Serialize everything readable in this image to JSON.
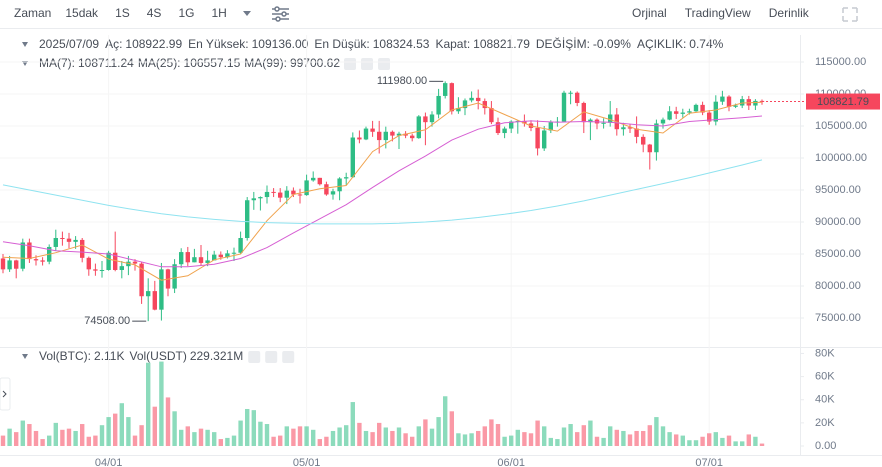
{
  "toolbar": {
    "label": "Zaman",
    "intervals": [
      "15dak",
      "1S",
      "4S",
      "1G",
      "1H"
    ],
    "active_interval": 3,
    "views": [
      "Orjinal",
      "TradingView",
      "Derinlik"
    ],
    "active_view": 0
  },
  "info": {
    "date": "2025/07/09",
    "items": [
      {
        "label": "Aç:",
        "value": "108922.99"
      },
      {
        "label": "En Yüksek:",
        "value": "109136.00"
      },
      {
        "label": "En Düşük:",
        "value": "108324.53"
      },
      {
        "label": "Kapat:",
        "value": "108821.79"
      },
      {
        "label": "DEĞİŞİM:",
        "value": "-0.09%"
      },
      {
        "label": "AÇIKLIK:",
        "value": "0.74%"
      }
    ]
  },
  "chart_data": [
    {
      "type": "candlestick",
      "up_color": "#2ebd85",
      "down_color": "#f6465d",
      "categories": [
        null,
        null,
        null,
        null,
        null,
        null,
        null,
        null,
        null,
        null,
        null,
        null,
        null,
        null,
        null,
        null,
        "04/01",
        null,
        null,
        null,
        null,
        null,
        null,
        null,
        null,
        null,
        null,
        null,
        null,
        null,
        null,
        null,
        null,
        null,
        null,
        null,
        null,
        null,
        null,
        null,
        null,
        null,
        null,
        null,
        null,
        null,
        "05/01",
        null,
        null,
        null,
        null,
        null,
        null,
        null,
        null,
        null,
        null,
        null,
        null,
        null,
        null,
        null,
        null,
        null,
        null,
        null,
        null,
        null,
        null,
        null,
        null,
        null,
        null,
        null,
        null,
        null,
        null,
        "06/01",
        null,
        null,
        null,
        null,
        null,
        null,
        null,
        null,
        null,
        null,
        null,
        null,
        null,
        null,
        null,
        null,
        null,
        null,
        null,
        null,
        null,
        null,
        null,
        null,
        null,
        null,
        null,
        null,
        null,
        "07/01",
        null,
        null,
        null,
        null,
        null,
        null,
        null,
        null
      ],
      "open": [
        84300,
        82600,
        84000,
        82700,
        86800,
        84200,
        84000,
        83800,
        86100,
        87500,
        87400,
        86900,
        87200,
        84400,
        82600,
        82400,
        82500,
        85200,
        82500,
        83100,
        83800,
        83500,
        78400,
        79200,
        76300,
        82600,
        79600,
        83400,
        85300,
        83700,
        84500,
        83600,
        84000,
        84900,
        84500,
        85100,
        85200,
        87500,
        93400,
        93700,
        93900,
        94700,
        94600,
        93800,
        94900,
        94300,
        94200,
        96500,
        96900,
        95900,
        94300,
        94800,
        96800,
        97000,
        103200,
        102900,
        104600,
        104100,
        102800,
        104100,
        103500,
        103800,
        103500,
        103100,
        106500,
        105600,
        106800,
        109700,
        111700,
        107300,
        107800,
        109000,
        109400,
        108900,
        107800,
        105600,
        103900,
        104600,
        105700,
        105800,
        105400,
        104700,
        101500,
        104300,
        105600,
        105700,
        110200,
        110200,
        108600,
        105600,
        106000,
        105400,
        105500,
        106800,
        104500,
        104800,
        104600,
        103300,
        102100,
        100900,
        105400,
        106000,
        107300,
        106900,
        107100,
        107300,
        108300,
        107100,
        105700,
        108800,
        109600,
        108000,
        108200,
        109200,
        108200,
        108922.99
      ],
      "high": [
        85000,
        84700,
        84100,
        87400,
        87400,
        84800,
        84500,
        86500,
        88800,
        88500,
        88300,
        87800,
        87500,
        84600,
        83500,
        83900,
        85500,
        88500,
        83900,
        84700,
        84200,
        83800,
        81200,
        80800,
        83600,
        82700,
        84200,
        85900,
        86100,
        85800,
        86400,
        85500,
        85500,
        85400,
        85600,
        86000,
        88500,
        93900,
        94700,
        94000,
        95700,
        95300,
        95300,
        95600,
        95400,
        95200,
        97400,
        97900,
        96900,
        96300,
        95200,
        97000,
        97700,
        104000,
        104300,
        104900,
        105800,
        105800,
        104900,
        104300,
        104100,
        104200,
        103800,
        106700,
        107100,
        107300,
        110800,
        111980,
        111800,
        109500,
        109300,
        110400,
        110700,
        109300,
        108900,
        106300,
        104900,
        105900,
        105900,
        106800,
        105900,
        105900,
        105000,
        105900,
        106400,
        110500,
        110500,
        110400,
        108800,
        106200,
        106200,
        106200,
        108900,
        107800,
        105500,
        105300,
        106500,
        103700,
        102200,
        106000,
        106300,
        108100,
        108000,
        107700,
        107700,
        108500,
        108800,
        107500,
        109800,
        110500,
        109800,
        108500,
        109700,
        109700,
        109200,
        109136
      ],
      "low": [
        82000,
        82200,
        81200,
        82300,
        83600,
        83200,
        83200,
        83400,
        85500,
        86300,
        85900,
        85800,
        83700,
        81600,
        81600,
        81300,
        82400,
        82300,
        81200,
        81700,
        82400,
        77200,
        74508,
        76200,
        74600,
        78400,
        78900,
        82800,
        83100,
        83700,
        83200,
        83100,
        84000,
        84100,
        84300,
        83900,
        85000,
        87100,
        91900,
        91800,
        92900,
        93900,
        93100,
        92800,
        93900,
        92900,
        94100,
        96300,
        95700,
        94100,
        93500,
        93400,
        95800,
        96900,
        102300,
        102800,
        103300,
        100700,
        101500,
        102600,
        101400,
        103100,
        102600,
        103000,
        102000,
        104900,
        106200,
        109300,
        106800,
        106900,
        106700,
        108700,
        107600,
        106800,
        105300,
        103600,
        103100,
        103900,
        103800,
        104900,
        104200,
        100400,
        101100,
        103900,
        104900,
        105600,
        108400,
        108100,
        103900,
        102800,
        104500,
        104600,
        104900,
        103500,
        103500,
        103900,
        102300,
        100900,
        98200,
        99600,
        104600,
        105900,
        106100,
        106300,
        106800,
        107200,
        106700,
        105200,
        105100,
        108300,
        107300,
        107800,
        107800,
        107500,
        107500,
        108324.53
      ],
      "close": [
        82600,
        84000,
        82700,
        86800,
        84200,
        84000,
        83800,
        86100,
        87500,
        87400,
        86900,
        87200,
        84400,
        82600,
        82400,
        82500,
        85200,
        82500,
        83100,
        83800,
        83500,
        78400,
        79200,
        76300,
        82600,
        79600,
        83400,
        85300,
        83700,
        84500,
        83600,
        84000,
        84900,
        84500,
        85100,
        85200,
        87500,
        93400,
        93700,
        93900,
        94700,
        94600,
        93800,
        94900,
        94300,
        94200,
        96500,
        96900,
        95900,
        94300,
        94800,
        96800,
        97000,
        103200,
        102900,
        104600,
        104100,
        102800,
        104100,
        103500,
        103800,
        103500,
        103100,
        106500,
        105600,
        106800,
        109700,
        111700,
        107300,
        107800,
        109000,
        109400,
        108900,
        107800,
        105600,
        103900,
        104600,
        105700,
        105800,
        105400,
        104700,
        101500,
        104300,
        105600,
        105700,
        110200,
        110200,
        108600,
        105600,
        106000,
        105400,
        105500,
        106800,
        104500,
        104800,
        104600,
        103300,
        102100,
        100900,
        105400,
        106000,
        107300,
        106900,
        107100,
        107300,
        108300,
        107100,
        105700,
        108800,
        109600,
        108000,
        108200,
        109200,
        108200,
        108922.99,
        108821.79
      ],
      "ma": [
        {
          "name": "MA(7):",
          "color": "#f0a34e",
          "current": 108711.24,
          "x": [
            0,
            4,
            8,
            12,
            16,
            20,
            24,
            28,
            32,
            36,
            40,
            44,
            48,
            52,
            56,
            60,
            64,
            68,
            72,
            76,
            80,
            84,
            88,
            92,
            96,
            100,
            104,
            108,
            112,
            115
          ],
          "values": [
            84500,
            84300,
            85200,
            86400,
            84200,
            83300,
            80900,
            81600,
            84100,
            85000,
            90200,
            94300,
            95200,
            95700,
            101000,
            103500,
            104400,
            107500,
            108600,
            106800,
            105000,
            104200,
            107200,
            106000,
            104500,
            103900,
            107000,
            107500,
            108600,
            108711.24
          ]
        },
        {
          "name": "MA(25):",
          "color": "#d65fd3",
          "current": 106557.15,
          "x": [
            0,
            4,
            8,
            12,
            16,
            20,
            24,
            28,
            32,
            36,
            40,
            44,
            48,
            52,
            56,
            60,
            64,
            68,
            72,
            76,
            80,
            84,
            88,
            92,
            96,
            100,
            104,
            108,
            112,
            115
          ],
          "values": [
            86900,
            86300,
            85500,
            85300,
            85000,
            84000,
            83000,
            83000,
            83400,
            84300,
            86000,
            88300,
            90500,
            92700,
            95400,
            98000,
            100300,
            102800,
            104500,
            105500,
            105800,
            105600,
            105700,
            105600,
            105200,
            105000,
            105700,
            106000,
            106300,
            106557.15
          ]
        },
        {
          "name": "MA(99):",
          "color": "#8fe3f0",
          "current": 99700.62,
          "x": [
            0,
            4,
            8,
            12,
            16,
            20,
            24,
            28,
            32,
            36,
            40,
            44,
            48,
            52,
            56,
            60,
            64,
            68,
            72,
            76,
            80,
            84,
            88,
            92,
            96,
            100,
            104,
            108,
            112,
            115
          ],
          "values": [
            95800,
            95000,
            94200,
            93400,
            92600,
            91900,
            91300,
            90800,
            90400,
            90100,
            89900,
            89800,
            89700,
            89700,
            89700,
            89800,
            90000,
            90300,
            90700,
            91200,
            91800,
            92500,
            93300,
            94200,
            95100,
            96000,
            96900,
            97900,
            98900,
            99700.62
          ]
        }
      ],
      "annotations": [
        {
          "text": "111980.00",
          "value": 111980,
          "x": 67
        },
        {
          "text": "74508.00",
          "value": 74508,
          "x": 22
        }
      ],
      "ylim": [
        70780,
        119220
      ],
      "yticks": [
        {
          "value": 75000,
          "label": "75000.00"
        },
        {
          "value": 80000,
          "label": "80000.00"
        },
        {
          "value": 85000,
          "label": "85000.00"
        },
        {
          "value": 90000,
          "label": "90000.00"
        },
        {
          "value": 95000,
          "label": "95000.00"
        },
        {
          "value": 100000,
          "label": "100000.00"
        },
        {
          "value": 105000,
          "label": "105000.00"
        },
        {
          "value": 110000,
          "label": "110000.00"
        },
        {
          "value": 115000,
          "label": "115000.00"
        }
      ],
      "grid": true
    },
    {
      "type": "bar",
      "legend": [
        {
          "label": "Vol(BTC):",
          "value": "2.11K"
        },
        {
          "label": "Vol(USDT)",
          "value": "229.321M"
        }
      ],
      "values": [
        9000,
        15000,
        12000,
        22000,
        19000,
        13000,
        6000,
        9000,
        20000,
        14000,
        15000,
        13000,
        19000,
        8000,
        9000,
        18000,
        25000,
        28000,
        37000,
        25000,
        9000,
        18000,
        72000,
        34000,
        73000,
        42000,
        30000,
        14000,
        17000,
        12000,
        15000,
        14000,
        12000,
        6000,
        7000,
        9000,
        22000,
        32000,
        31000,
        21000,
        19000,
        8000,
        9000,
        17000,
        15000,
        17000,
        17000,
        14000,
        6000,
        8000,
        13000,
        16000,
        18000,
        38000,
        20000,
        13000,
        12000,
        20000,
        16000,
        13000,
        16000,
        11000,
        8000,
        17000,
        23000,
        15000,
        25000,
        43000,
        30000,
        11000,
        10000,
        11000,
        13000,
        17000,
        23000,
        19000,
        8000,
        9000,
        14000,
        12000,
        11000,
        22000,
        17000,
        7000,
        6000,
        16000,
        19000,
        12000,
        18000,
        22000,
        8000,
        7000,
        17000,
        14000,
        13000,
        10000,
        13000,
        13000,
        18000,
        25000,
        17000,
        12000,
        10000,
        9000,
        5000,
        5000,
        8000,
        11000,
        12000,
        7000,
        9000,
        4000,
        4000,
        10000,
        8000,
        2110
      ],
      "ylim": [
        0,
        83000
      ],
      "yticks": [
        {
          "value": 0,
          "label": "0.00"
        },
        {
          "value": 20000,
          "label": "20K"
        },
        {
          "value": 40000,
          "label": "40K"
        },
        {
          "value": 60000,
          "label": "60K"
        },
        {
          "value": 80000,
          "label": "80K"
        }
      ]
    }
  ]
}
